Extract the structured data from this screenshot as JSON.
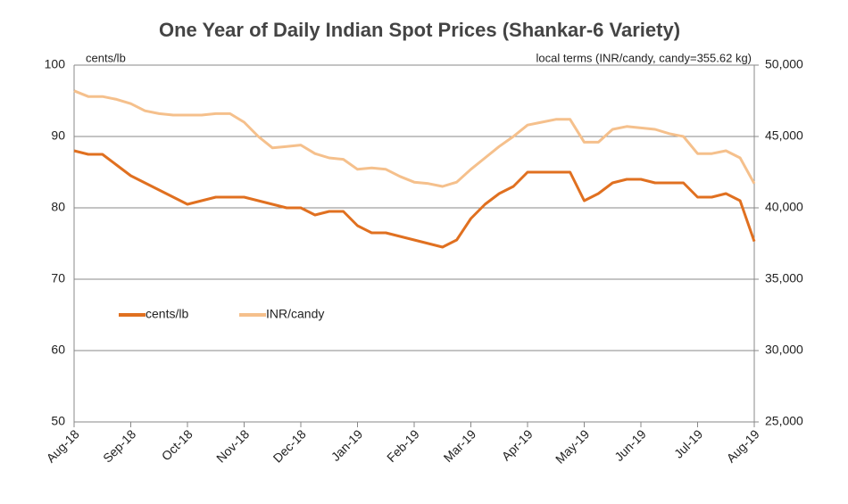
{
  "chart_data": {
    "type": "line",
    "title": "One Year of Daily Indian Spot Prices (Shankar-6 Variety)",
    "y_label": "cents/lb",
    "y2_label": "local terms (INR/candy, candy=355.62 kg)",
    "categories": [
      "Aug-18",
      null,
      null,
      null,
      "Sep-18",
      null,
      null,
      null,
      "Oct-18",
      null,
      null,
      null,
      "Nov-18",
      null,
      null,
      null,
      "Dec-18",
      null,
      null,
      null,
      "Jan-19",
      null,
      null,
      null,
      "Feb-19",
      null,
      null,
      null,
      "Mar-19",
      null,
      null,
      null,
      "Apr-19",
      null,
      null,
      null,
      "May-19",
      null,
      null,
      null,
      "Jun-19",
      null,
      null,
      null,
      "Jul-19",
      null,
      null,
      null,
      "Aug-19"
    ],
    "series": [
      {
        "name": "cents/lb",
        "color": "#e07020",
        "axis": "y",
        "values": [
          88,
          87.5,
          87.5,
          86,
          84.5,
          83.5,
          82.5,
          81.5,
          80.5,
          81,
          81.5,
          81.5,
          81.5,
          81,
          80.5,
          80,
          80,
          79,
          79.5,
          79.5,
          77.5,
          76.5,
          76.5,
          76,
          75.5,
          75,
          74.5,
          75.5,
          78.5,
          80.5,
          82,
          83,
          85,
          85,
          85,
          85,
          81,
          82,
          83.5,
          84,
          84,
          83.5,
          83.5,
          83.5,
          81.5,
          81.5,
          82,
          81,
          75.3
        ]
      },
      {
        "name": "INR/candy",
        "color": "#f5c08c",
        "axis": "y2",
        "values": [
          48200,
          47800,
          47800,
          47600,
          47300,
          46800,
          46600,
          46500,
          46500,
          46500,
          46600,
          46600,
          46000,
          45000,
          44200,
          44300,
          44400,
          43800,
          43500,
          43400,
          42700,
          42800,
          42700,
          42200,
          41800,
          41700,
          41500,
          41800,
          42700,
          43500,
          44300,
          45000,
          45800,
          46000,
          46200,
          46200,
          44600,
          44600,
          45500,
          45700,
          45600,
          45500,
          45200,
          45000,
          43800,
          43800,
          44000,
          43500,
          41700
        ]
      }
    ],
    "ylim": [
      50,
      100
    ],
    "yticks": [
      50,
      60,
      70,
      80,
      90,
      100
    ],
    "y2lim": [
      25000,
      50000
    ],
    "y2ticks": [
      {
        "value": 25000,
        "label": "25,000"
      },
      {
        "value": 30000,
        "label": "30,000"
      },
      {
        "value": 35000,
        "label": "35,000"
      },
      {
        "value": 40000,
        "label": "40,000"
      },
      {
        "value": 45000,
        "label": "45,000"
      },
      {
        "value": 50000,
        "label": "50,000"
      }
    ],
    "grid": true,
    "legend": "left"
  }
}
